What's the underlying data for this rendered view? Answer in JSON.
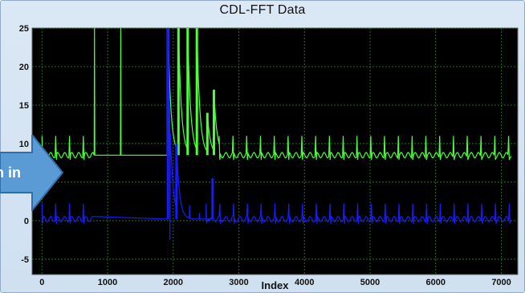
{
  "window": {
    "title": "CDL-FFT Data"
  },
  "callout": {
    "text": "n in",
    "icon": "right-arrow-icon",
    "color": "#5b9bd5"
  },
  "chart_data": {
    "type": "line",
    "title": "CDL-FFT Data",
    "xlabel": "Index",
    "ylabel": "",
    "xlim": [
      -150,
      7250
    ],
    "ylim": [
      -7,
      25
    ],
    "x_ticks": [
      0,
      1000,
      2000,
      3000,
      4000,
      5000,
      6000,
      7000
    ],
    "y_ticks": [
      -5,
      0,
      5,
      10,
      15,
      20,
      25
    ],
    "grid": true,
    "background": "#000000",
    "series": [
      {
        "color": "#4cff3a",
        "baseline": 8.5,
        "spike_period": 210,
        "spike_height": 2.5,
        "segments": [
          [
            0,
            780
          ],
          [
            2700,
            7150
          ]
        ],
        "steps": [
          [
            800,
            25
          ],
          [
            1200,
            25
          ]
        ],
        "transient": {
          "x_start": 1900,
          "x_end": 2700,
          "peaks": [
            [
              1920,
              25
            ],
            [
              2080,
              25
            ],
            [
              2220,
              25
            ],
            [
              2360,
              25
            ],
            [
              2520,
              14
            ],
            [
              2620,
              17
            ]
          ]
        }
      },
      {
        "color": "#1a1aff",
        "baseline": 0.2,
        "spike_period": 210,
        "spike_height": 2.0,
        "segments": [
          [
            0,
            780
          ],
          [
            2500,
            7150
          ]
        ],
        "dips": [
          [
            1950,
            -2.5
          ],
          [
            2100,
            3
          ],
          [
            2250,
            2
          ],
          [
            2400,
            1
          ]
        ],
        "transient": {
          "x_start": 1900,
          "x_end": 2600,
          "peaks": [
            [
              1920,
              25
            ],
            [
              2050,
              10
            ],
            [
              2600,
              5.5
            ]
          ]
        }
      }
    ]
  }
}
